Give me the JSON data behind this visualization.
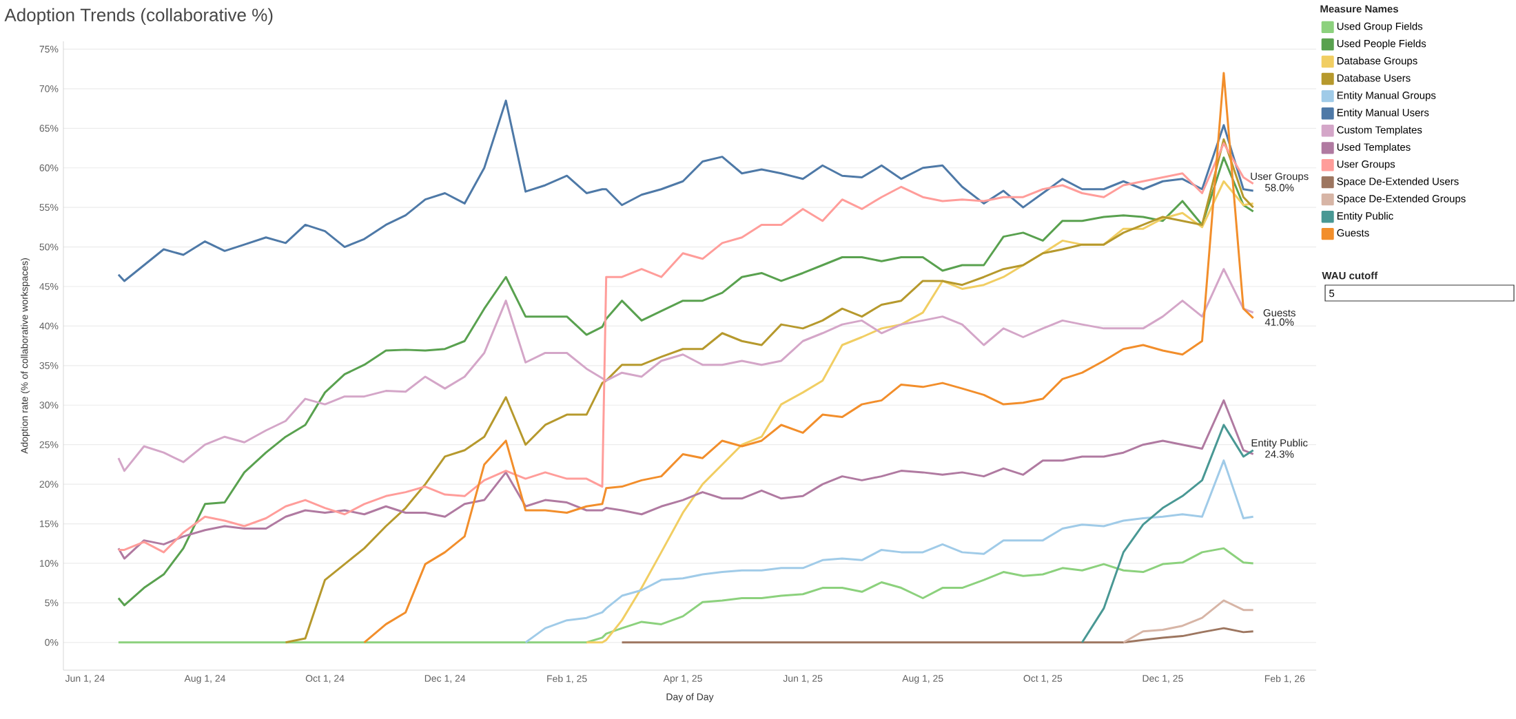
{
  "chart_data": {
    "type": "line",
    "title": "Adoption Trends (collaborative %)",
    "xlabel": "Day of Day",
    "ylabel": "Adoption rate (% of collaborative workspaces)",
    "legend_title": "Measure Names",
    "legend": "top right",
    "grid": "y",
    "xlim": [
      "2024-05-21",
      "2026-02-17"
    ],
    "xticks": [
      {
        "value": "2024-06-01",
        "label": "Jun 1, 24"
      },
      {
        "value": "2024-08-01",
        "label": "Aug 1, 24"
      },
      {
        "value": "2024-10-01",
        "label": "Oct 1, 24"
      },
      {
        "value": "2024-12-01",
        "label": "Dec 1, 24"
      },
      {
        "value": "2025-02-01",
        "label": "Feb 1, 25"
      },
      {
        "value": "2025-04-01",
        "label": "Apr 1, 25"
      },
      {
        "value": "2025-06-01",
        "label": "Jun 1, 25"
      },
      {
        "value": "2025-08-01",
        "label": "Aug 1, 25"
      },
      {
        "value": "2025-10-01",
        "label": "Oct 1, 25"
      },
      {
        "value": "2025-12-01",
        "label": "Dec 1, 25"
      },
      {
        "value": "2026-02-01",
        "label": "Feb 1, 26"
      }
    ],
    "ylim": [
      -3.5,
      76
    ],
    "yticks": [
      {
        "value": 0,
        "label": "0%"
      },
      {
        "value": 5,
        "label": "5%"
      },
      {
        "value": 10,
        "label": "10%"
      },
      {
        "value": 15,
        "label": "15%"
      },
      {
        "value": 20,
        "label": "20%"
      },
      {
        "value": 25,
        "label": "25%"
      },
      {
        "value": 30,
        "label": "30%"
      },
      {
        "value": 35,
        "label": "35%"
      },
      {
        "value": 40,
        "label": "40%"
      },
      {
        "value": 45,
        "label": "45%"
      },
      {
        "value": 50,
        "label": "50%"
      },
      {
        "value": 55,
        "label": "55%"
      },
      {
        "value": 60,
        "label": "60%"
      },
      {
        "value": 65,
        "label": "65%"
      },
      {
        "value": 70,
        "label": "70%"
      },
      {
        "value": 75,
        "label": "75%"
      }
    ],
    "x": [
      "2024-06-18",
      "2024-06-21",
      "2024-07-01",
      "2024-07-11",
      "2024-07-21",
      "2024-08-01",
      "2024-08-11",
      "2024-08-21",
      "2024-09-01",
      "2024-09-11",
      "2024-09-21",
      "2024-10-01",
      "2024-10-11",
      "2024-10-21",
      "2024-11-01",
      "2024-11-11",
      "2024-11-21",
      "2024-12-01",
      "2024-12-11",
      "2024-12-21",
      "2025-01-01",
      "2025-01-11",
      "2025-01-21",
      "2025-02-01",
      "2025-02-11",
      "2025-02-19",
      "2025-02-21",
      "2025-03-01",
      "2025-03-11",
      "2025-03-21",
      "2025-04-01",
      "2025-04-11",
      "2025-04-21",
      "2025-05-01",
      "2025-05-11",
      "2025-05-21",
      "2025-06-01",
      "2025-06-11",
      "2025-06-21",
      "2025-07-01",
      "2025-07-11",
      "2025-07-21",
      "2025-08-01",
      "2025-08-11",
      "2025-08-21",
      "2025-09-01",
      "2025-09-11",
      "2025-09-21",
      "2025-10-01",
      "2025-10-11",
      "2025-10-21",
      "2025-11-01",
      "2025-11-11",
      "2025-11-21",
      "2025-12-01",
      "2025-12-11",
      "2025-12-21",
      "2026-01-01",
      "2026-01-11",
      "2026-01-16"
    ],
    "series": [
      {
        "name": "Used Group Fields",
        "color": "#8cd17d",
        "values": [
          0,
          0,
          0,
          0,
          0,
          0,
          0,
          0,
          0,
          0,
          0,
          0,
          0,
          0,
          0,
          0,
          0,
          0,
          0,
          0,
          0,
          0,
          0,
          0,
          0,
          0.6,
          1.1,
          1.8,
          2.6,
          2.3,
          3.3,
          5.1,
          5.3,
          5.6,
          5.6,
          5.9,
          6.1,
          6.9,
          6.9,
          6.4,
          7.6,
          6.9,
          5.6,
          6.9,
          6.9,
          7.9,
          8.9,
          8.4,
          8.6,
          9.4,
          9.1,
          9.9,
          9.1,
          8.9,
          9.9,
          10.1,
          11.4,
          11.9,
          10.1,
          10
        ]
      },
      {
        "name": "Used People Fields",
        "color": "#59a14f",
        "values": [
          5.6,
          4.7,
          6.9,
          8.6,
          11.9,
          17.5,
          17.7,
          21.5,
          24,
          26,
          27.5,
          31.6,
          33.9,
          35.1,
          36.9,
          37,
          36.9,
          37.1,
          38.1,
          42.2,
          46.2,
          41.2,
          41.2,
          41.2,
          38.9,
          39.9,
          40.9,
          43.2,
          40.7,
          41.9,
          43.2,
          43.2,
          44.2,
          46.2,
          46.7,
          45.7,
          46.7,
          47.7,
          48.7,
          48.7,
          48.2,
          48.7,
          48.7,
          47,
          47.7,
          47.7,
          51.3,
          51.8,
          50.8,
          53.3,
          53.3,
          53.8,
          54,
          53.8,
          53.3,
          55.8,
          52.8,
          61.3,
          55.3,
          54.5
        ]
      },
      {
        "name": "Database Groups",
        "color": "#f1ce63",
        "values": [
          null,
          null,
          null,
          null,
          null,
          null,
          null,
          null,
          null,
          null,
          null,
          null,
          null,
          null,
          null,
          null,
          null,
          null,
          null,
          null,
          null,
          null,
          null,
          null,
          0,
          0,
          0.3,
          2.8,
          6.9,
          11.4,
          16.4,
          20,
          22.5,
          25,
          26,
          30.1,
          31.6,
          33.1,
          37.6,
          38.6,
          39.7,
          40.2,
          41.7,
          45.7,
          44.7,
          45.2,
          46.2,
          47.7,
          49.2,
          50.8,
          50.3,
          50.3,
          52.3,
          52.3,
          53.6,
          54.3,
          52.5,
          58.3,
          55.3,
          55.5
        ]
      },
      {
        "name": "Database Users",
        "color": "#b6992d",
        "values": [
          null,
          null,
          null,
          null,
          null,
          null,
          null,
          null,
          null,
          0,
          0.5,
          7.9,
          9.9,
          11.9,
          14.7,
          17,
          20,
          23.5,
          24.3,
          26,
          31,
          25,
          27.5,
          28.8,
          28.8,
          32.8,
          33.1,
          35.1,
          35.1,
          36.1,
          37.1,
          37.1,
          39.1,
          38.1,
          37.6,
          40.2,
          39.7,
          40.7,
          42.2,
          41.2,
          42.7,
          43.2,
          45.7,
          45.7,
          45.2,
          46.2,
          47.2,
          47.7,
          49.2,
          49.7,
          50.3,
          50.3,
          51.8,
          52.8,
          53.8,
          53.3,
          52.8,
          63.6,
          56.3,
          55
        ]
      },
      {
        "name": "Entity Manual Groups",
        "color": "#a0cbe8",
        "values": [
          null,
          null,
          null,
          null,
          null,
          null,
          null,
          null,
          null,
          null,
          null,
          null,
          null,
          null,
          null,
          null,
          null,
          null,
          null,
          null,
          null,
          0,
          1.8,
          2.8,
          3.1,
          3.8,
          4.3,
          5.9,
          6.6,
          7.9,
          8.1,
          8.6,
          8.9,
          9.1,
          9.1,
          9.4,
          9.4,
          10.4,
          10.6,
          10.4,
          11.7,
          11.4,
          11.4,
          12.4,
          11.4,
          11.2,
          12.9,
          12.9,
          12.9,
          14.4,
          14.9,
          14.7,
          15.4,
          15.7,
          15.9,
          16.2,
          15.9,
          23,
          15.7,
          15.9
        ]
      },
      {
        "name": "Entity Manual Users",
        "color": "#4e79a7",
        "values": [
          46.5,
          45.7,
          47.7,
          49.7,
          49,
          50.7,
          49.5,
          50.3,
          51.2,
          50.5,
          52.8,
          52,
          50,
          51,
          52.8,
          54,
          56,
          56.8,
          55.5,
          60,
          68.5,
          57,
          57.8,
          59,
          56.8,
          57.3,
          57.3,
          55.3,
          56.6,
          57.3,
          58.3,
          60.8,
          61.4,
          59.3,
          59.8,
          59.3,
          58.6,
          60.3,
          59,
          58.8,
          60.3,
          58.6,
          60,
          60.3,
          57.6,
          55.5,
          57.1,
          55,
          56.8,
          58.6,
          57.3,
          57.3,
          58.3,
          57.3,
          58.3,
          58.6,
          57.3,
          65.4,
          57.3,
          57.1
        ]
      },
      {
        "name": "Custom Templates",
        "color": "#d4a6c8",
        "values": [
          23.3,
          21.7,
          24.8,
          24,
          22.8,
          25,
          26,
          25.3,
          26.8,
          28,
          30.8,
          30.1,
          31.1,
          31.1,
          31.8,
          31.7,
          33.6,
          32.1,
          33.6,
          36.6,
          43.2,
          35.4,
          36.6,
          36.6,
          34.6,
          33.4,
          33.1,
          34.1,
          33.6,
          35.6,
          36.4,
          35.1,
          35.1,
          35.6,
          35.1,
          35.6,
          38.1,
          39.1,
          40.2,
          40.7,
          39.1,
          40.2,
          40.7,
          41.2,
          40.2,
          37.6,
          39.7,
          38.6,
          39.7,
          40.7,
          40.2,
          39.7,
          39.7,
          39.7,
          41.2,
          43.2,
          41.2,
          47.2,
          42.2,
          41.7
        ]
      },
      {
        "name": "Used Templates",
        "color": "#b07aa1",
        "values": [
          11.9,
          10.6,
          12.9,
          12.4,
          13.4,
          14.2,
          14.7,
          14.4,
          14.4,
          15.9,
          16.7,
          16.4,
          16.7,
          16.2,
          17.2,
          16.4,
          16.4,
          15.9,
          17.5,
          18,
          21.5,
          17.2,
          18,
          17.7,
          16.7,
          16.7,
          17,
          16.7,
          16.2,
          17.2,
          18,
          19,
          18.2,
          18.2,
          19.2,
          18.2,
          18.5,
          20,
          21,
          20.5,
          21,
          21.7,
          21.5,
          21.2,
          21.5,
          21,
          22,
          21.2,
          23,
          23,
          23.5,
          23.5,
          24,
          25,
          25.5,
          25,
          24.5,
          30.6,
          24.3,
          23.8
        ]
      },
      {
        "name": "User Groups",
        "color": "#ff9d9a",
        "values": [
          11.7,
          11.7,
          12.7,
          11.4,
          13.9,
          15.9,
          15.4,
          14.7,
          15.7,
          17.2,
          18,
          17,
          16.2,
          17.5,
          18.5,
          19,
          19.7,
          18.7,
          18.5,
          20.5,
          21.7,
          20.7,
          21.5,
          20.7,
          20.7,
          19.7,
          46.2,
          46.2,
          47.2,
          46.2,
          49.2,
          48.5,
          50.5,
          51.2,
          52.8,
          52.8,
          54.8,
          53.3,
          56,
          54.8,
          56.3,
          57.6,
          56.3,
          55.8,
          56,
          55.8,
          56.3,
          56.3,
          57.3,
          57.8,
          56.8,
          56.3,
          57.8,
          58.3,
          58.8,
          59.3,
          56.8,
          63.1,
          58.8,
          58.0
        ]
      },
      {
        "name": "Space De-Extended Users",
        "color": "#9d7660",
        "values": [
          null,
          null,
          null,
          null,
          null,
          null,
          null,
          null,
          null,
          null,
          null,
          null,
          null,
          null,
          null,
          null,
          null,
          null,
          null,
          null,
          null,
          null,
          null,
          null,
          null,
          null,
          null,
          0,
          0,
          0,
          0,
          0,
          0,
          0,
          0,
          0,
          0,
          0,
          0,
          0,
          0,
          0,
          0,
          0,
          0,
          0,
          0,
          0,
          0,
          0,
          0,
          0,
          0,
          0.3,
          0.6,
          0.8,
          1.3,
          1.8,
          1.3,
          1.4
        ]
      },
      {
        "name": "Space De-Extended Groups",
        "color": "#d7b5a6",
        "values": [
          null,
          null,
          null,
          null,
          null,
          null,
          null,
          null,
          null,
          null,
          null,
          null,
          null,
          null,
          null,
          null,
          null,
          null,
          null,
          null,
          null,
          null,
          null,
          null,
          null,
          null,
          null,
          null,
          null,
          null,
          null,
          null,
          null,
          null,
          null,
          null,
          null,
          null,
          null,
          null,
          null,
          null,
          null,
          null,
          null,
          null,
          null,
          null,
          null,
          null,
          null,
          null,
          0,
          1.4,
          1.6,
          2.1,
          3.1,
          5.3,
          4.1,
          4.1
        ]
      },
      {
        "name": "Entity Public",
        "color": "#499894",
        "values": [
          null,
          null,
          null,
          null,
          null,
          null,
          null,
          null,
          null,
          null,
          null,
          null,
          null,
          null,
          null,
          null,
          null,
          null,
          null,
          null,
          null,
          null,
          null,
          null,
          null,
          null,
          null,
          null,
          null,
          null,
          null,
          null,
          null,
          null,
          null,
          null,
          null,
          null,
          null,
          null,
          null,
          null,
          null,
          null,
          null,
          null,
          null,
          null,
          null,
          null,
          0,
          4.3,
          11.4,
          14.9,
          17,
          18.5,
          20.5,
          27.5,
          23.5,
          24.3
        ]
      },
      {
        "name": "Guests",
        "color": "#f28e2b",
        "values": [
          null,
          null,
          null,
          null,
          null,
          null,
          null,
          null,
          null,
          null,
          null,
          null,
          null,
          0,
          2.3,
          3.8,
          9.9,
          11.4,
          13.4,
          22.5,
          25.5,
          16.7,
          16.7,
          16.4,
          17.2,
          17.5,
          19.5,
          19.7,
          20.5,
          21,
          23.8,
          23.3,
          25.5,
          24.8,
          25.5,
          27.5,
          26.5,
          28.8,
          28.5,
          30.1,
          30.6,
          32.6,
          32.3,
          32.8,
          32.1,
          31.3,
          30.1,
          30.3,
          30.8,
          33.3,
          34.1,
          35.6,
          37.1,
          37.6,
          36.9,
          36.4,
          38.1,
          72,
          42.2,
          41.0
        ]
      }
    ],
    "annotations": [
      {
        "text": "User Groups",
        "x": "2026-01-16",
        "y": 58.0
      },
      {
        "text": "58.0%",
        "x": "2026-01-16",
        "y": 58.0
      },
      {
        "text": "Guests",
        "x": "2026-01-16",
        "y": 41.0
      },
      {
        "text": "41.0%",
        "x": "2026-01-16",
        "y": 41.0
      },
      {
        "text": "Entity Public",
        "x": "2026-01-16",
        "y": 24.3
      },
      {
        "text": "24.3%",
        "x": "2026-01-16",
        "y": 24.3
      },
      "WAU cutoff",
      "5"
    ]
  }
}
